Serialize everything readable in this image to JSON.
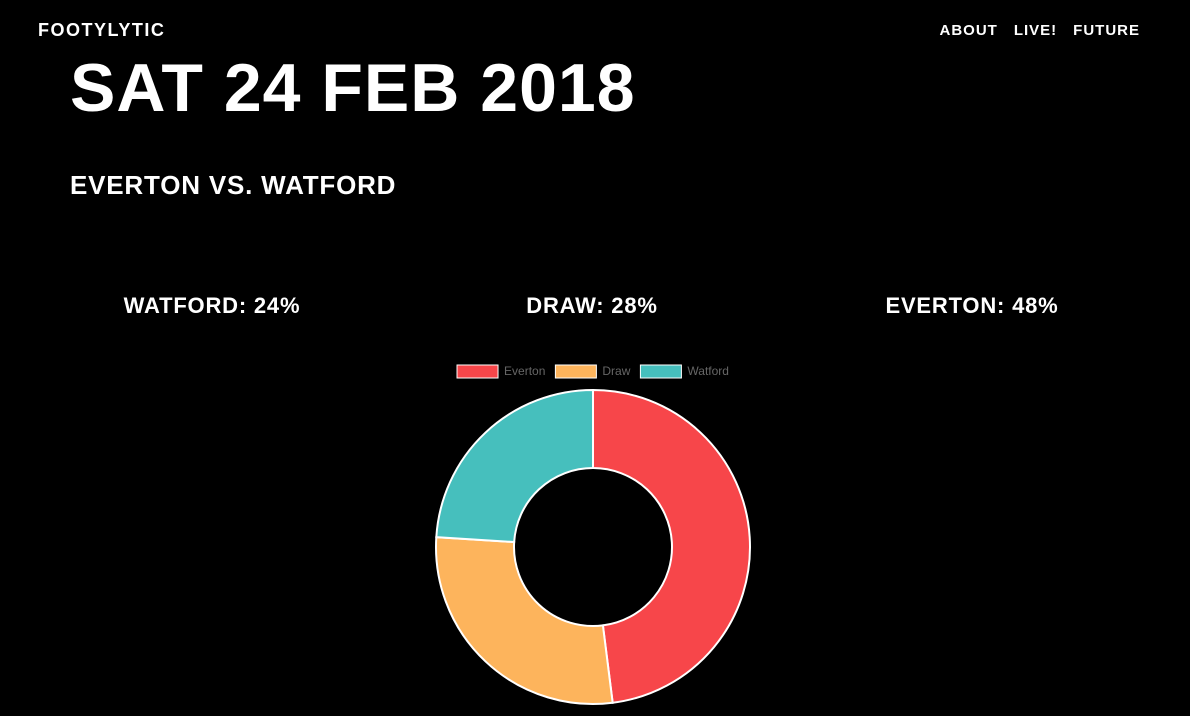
{
  "header": {
    "brand": "FOOTYLYTIC",
    "nav": [
      "ABOUT",
      "LIVE!",
      "FUTURE"
    ]
  },
  "match": {
    "date": "SAT 24 FEB 2018",
    "title": "EVERTON VS. WATFORD"
  },
  "odds": {
    "watford": "WATFORD: 24%",
    "draw": "DRAW: 28%",
    "everton": "EVERTON: 48%"
  },
  "chart_data": {
    "type": "pie",
    "variant": "doughnut",
    "categories": [
      "Everton",
      "Draw",
      "Watford"
    ],
    "values": [
      48,
      28,
      24
    ],
    "colors": [
      "#F7464A",
      "#FDB45C",
      "#46BFBD"
    ],
    "legend_position": "top"
  }
}
